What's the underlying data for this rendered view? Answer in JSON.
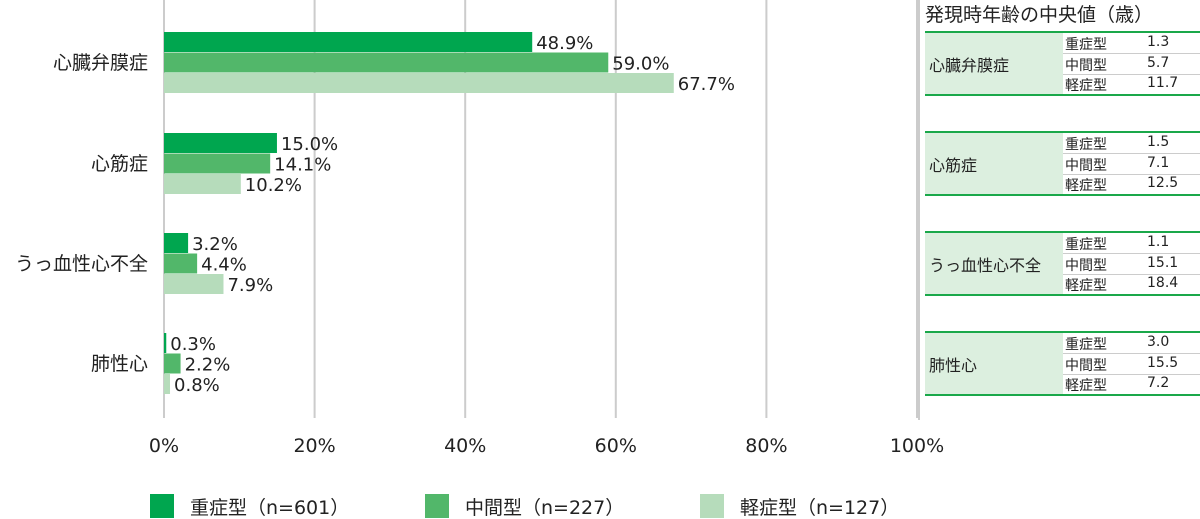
{
  "chart_data": {
    "type": "bar",
    "orientation": "horizontal",
    "categories": [
      "心臓弁膜症",
      "心筋症",
      "うっ血性心不全",
      "肺性心"
    ],
    "series": [
      {
        "name": "重症型（n=601）",
        "color": "#00a64f",
        "values": [
          48.9,
          15.0,
          3.2,
          0.3
        ]
      },
      {
        "name": "中間型（n=227）",
        "color": "#52b76a",
        "values": [
          59.0,
          14.1,
          4.4,
          2.2
        ]
      },
      {
        "name": "軽症型（n=127）",
        "color": "#b6dcbb",
        "values": [
          67.7,
          10.2,
          7.9,
          0.8
        ]
      }
    ],
    "data_labels": [
      [
        "48.9%",
        "15.0%",
        "3.2%",
        "0.3%"
      ],
      [
        "59.0%",
        "14.1%",
        "4.4%",
        "2.2%"
      ],
      [
        "67.7%",
        "10.2%",
        "7.9%",
        "0.8%"
      ]
    ],
    "xlim": [
      0,
      100
    ],
    "xticks": [
      "0%",
      "20%",
      "40%",
      "60%",
      "80%",
      "100%"
    ],
    "grid": true,
    "legend": "bottom"
  },
  "table": {
    "title": "発現時年齢の中央値（歳）",
    "groups": [
      {
        "name": "心臓弁膜症",
        "rows": [
          {
            "type": "重症型",
            "value": "1.3"
          },
          {
            "type": "中間型",
            "value": "5.7"
          },
          {
            "type": "軽症型",
            "value": "11.7"
          }
        ]
      },
      {
        "name": "心筋症",
        "rows": [
          {
            "type": "重症型",
            "value": "1.5"
          },
          {
            "type": "中間型",
            "value": "7.1"
          },
          {
            "type": "軽症型",
            "value": "12.5"
          }
        ]
      },
      {
        "name": "うっ血性心不全",
        "rows": [
          {
            "type": "重症型",
            "value": "1.1"
          },
          {
            "type": "中間型",
            "value": "15.1"
          },
          {
            "type": "軽症型",
            "value": "18.4"
          }
        ]
      },
      {
        "name": "肺性心",
        "rows": [
          {
            "type": "重症型",
            "value": "3.0"
          },
          {
            "type": "中間型",
            "value": "15.5"
          },
          {
            "type": "軽症型",
            "value": "7.2"
          }
        ]
      }
    ]
  }
}
